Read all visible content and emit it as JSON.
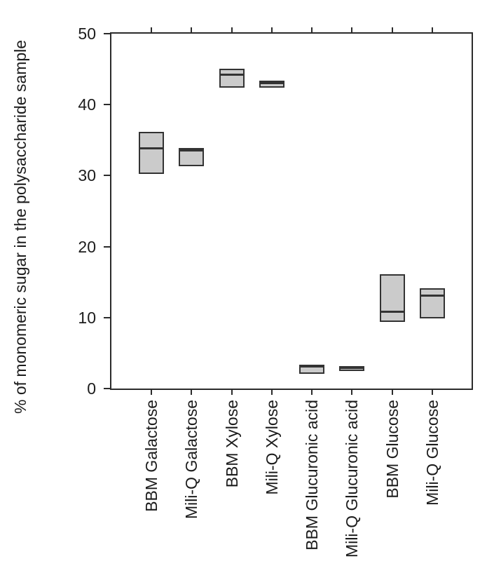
{
  "chart_data": {
    "type": "box",
    "title": "",
    "xlabel": "",
    "ylabel": "% of monomeric sugar in the polysaccharide sample",
    "ylim": [
      0,
      50
    ],
    "yticks": [
      0,
      10,
      20,
      30,
      40,
      50
    ],
    "grid": false,
    "legend": "none",
    "categories": [
      "BBM Galactose",
      "Mili-Q Galactose",
      "BBM Xylose",
      "Mili-Q Xylose",
      "BBM Glucuronic acid",
      "Mili-Q Glucuronic acid",
      "BBM Glucose",
      "Mili-Q Glucose"
    ],
    "boxes": [
      {
        "label": "BBM Galactose",
        "q1": 30.2,
        "median": 33.9,
        "q3": 36.2
      },
      {
        "label": "Mili-Q Galactose",
        "q1": 31.3,
        "median": 33.6,
        "q3": 33.9
      },
      {
        "label": "BBM Xylose",
        "q1": 42.4,
        "median": 44.3,
        "q3": 45.1
      },
      {
        "label": "Mili-Q Xylose",
        "q1": 42.4,
        "median": 43.1,
        "q3": 43.4
      },
      {
        "label": "BBM Glucuronic acid",
        "q1": 2.1,
        "median": 3.2,
        "q3": 3.4
      },
      {
        "label": "Mili-Q Glucuronic acid",
        "q1": 2.5,
        "median": 3.0,
        "q3": 3.2
      },
      {
        "label": "BBM Glucose",
        "q1": 9.4,
        "median": 10.9,
        "q3": 16.1
      },
      {
        "label": "Mili-Q Glucose",
        "q1": 9.9,
        "median": 13.1,
        "q3": 14.1
      }
    ],
    "colors": {
      "box_fill": "#cbcbcb",
      "box_border": "#333333",
      "median_line": "#333333",
      "axis": "#2b2b2b",
      "text": "#1c1c1c",
      "background": "#ffffff"
    }
  }
}
